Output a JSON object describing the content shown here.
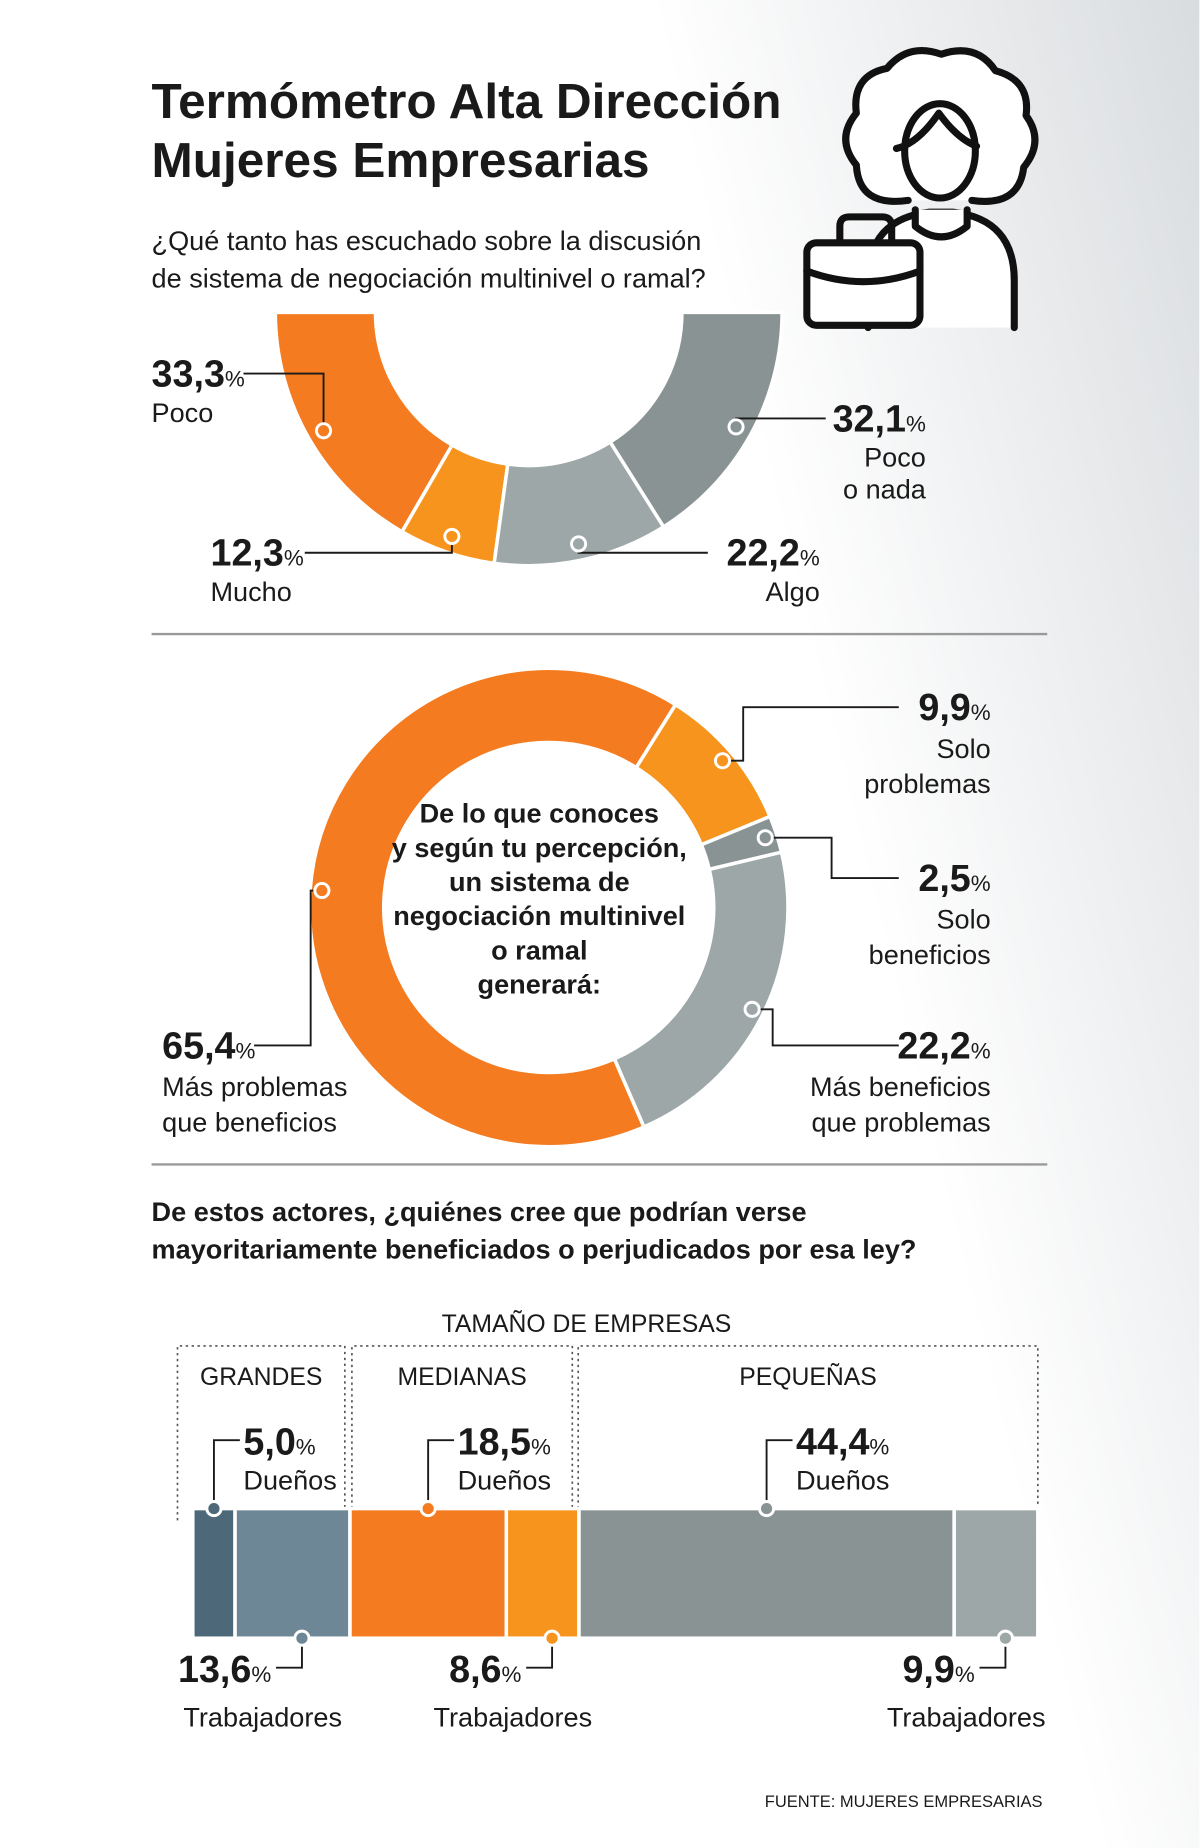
{
  "header": {
    "title": [
      "Termómetro Alta Dirección",
      "Mujeres Empresarias"
    ]
  },
  "chart_data": [
    {
      "type": "half-donut",
      "title": [
        "¿Qué tanto has escuchado sobre la discusión",
        "de sistema de negociación multinivel o ramal?"
      ],
      "categories": [
        [
          "Poco"
        ],
        [
          "Mucho"
        ],
        [
          "Algo"
        ],
        [
          "Poco",
          "o nada"
        ]
      ],
      "values": [
        33.3,
        12.3,
        22.2,
        32.1
      ],
      "value_labels": [
        "33,3",
        "12,3",
        "22,2",
        "32,1"
      ],
      "unit": "%",
      "colors": [
        "#f47b20",
        "#f7941d",
        "#9ea7a7",
        "#8a9393"
      ]
    },
    {
      "type": "donut",
      "center_text": [
        "De lo que conoces",
        "y según tu percepción,",
        "un sistema de",
        "negociación multinivel",
        "o ramal",
        "generará:"
      ],
      "categories": [
        [
          "Solo",
          "problemas"
        ],
        [
          "Solo",
          "beneficios"
        ],
        [
          "Más beneficios",
          "que problemas"
        ],
        [
          "Más problemas",
          "que beneficios"
        ]
      ],
      "values": [
        9.9,
        2.5,
        22.2,
        65.4
      ],
      "value_labels": [
        "9,9",
        "2,5",
        "22,2",
        "65,4"
      ],
      "unit": "%",
      "colors": [
        "#f7941d",
        "#8a9393",
        "#9ea7a7",
        "#f47b20"
      ]
    },
    {
      "type": "stacked-bar",
      "title": [
        "De estos actores, ¿quiénes cree que podrían verse",
        "mayoritariamente beneficiados o perjudicados por esa ley?"
      ],
      "group_title": "TAMAÑO DE EMPRESAS",
      "categories": [
        "GRANDES",
        "MEDIANAS",
        "PEQUEÑAS"
      ],
      "unit": "%",
      "series": [
        {
          "name": "Dueños",
          "values": [
            5.0,
            18.5,
            44.4
          ],
          "value_labels": [
            "5,0",
            "18,5",
            "44,4"
          ],
          "colors": [
            "#4d6878",
            "#f47b20",
            "#8a9393"
          ]
        },
        {
          "name": "Trabajadores",
          "values": [
            13.6,
            8.6,
            9.9
          ],
          "value_labels": [
            "13,6",
            "8,6",
            "9,9"
          ],
          "colors": [
            "#6e8796",
            "#f7941d",
            "#9ea7a7"
          ]
        }
      ]
    }
  ],
  "source": "FUENTE: MUJERES EMPRESARIAS"
}
